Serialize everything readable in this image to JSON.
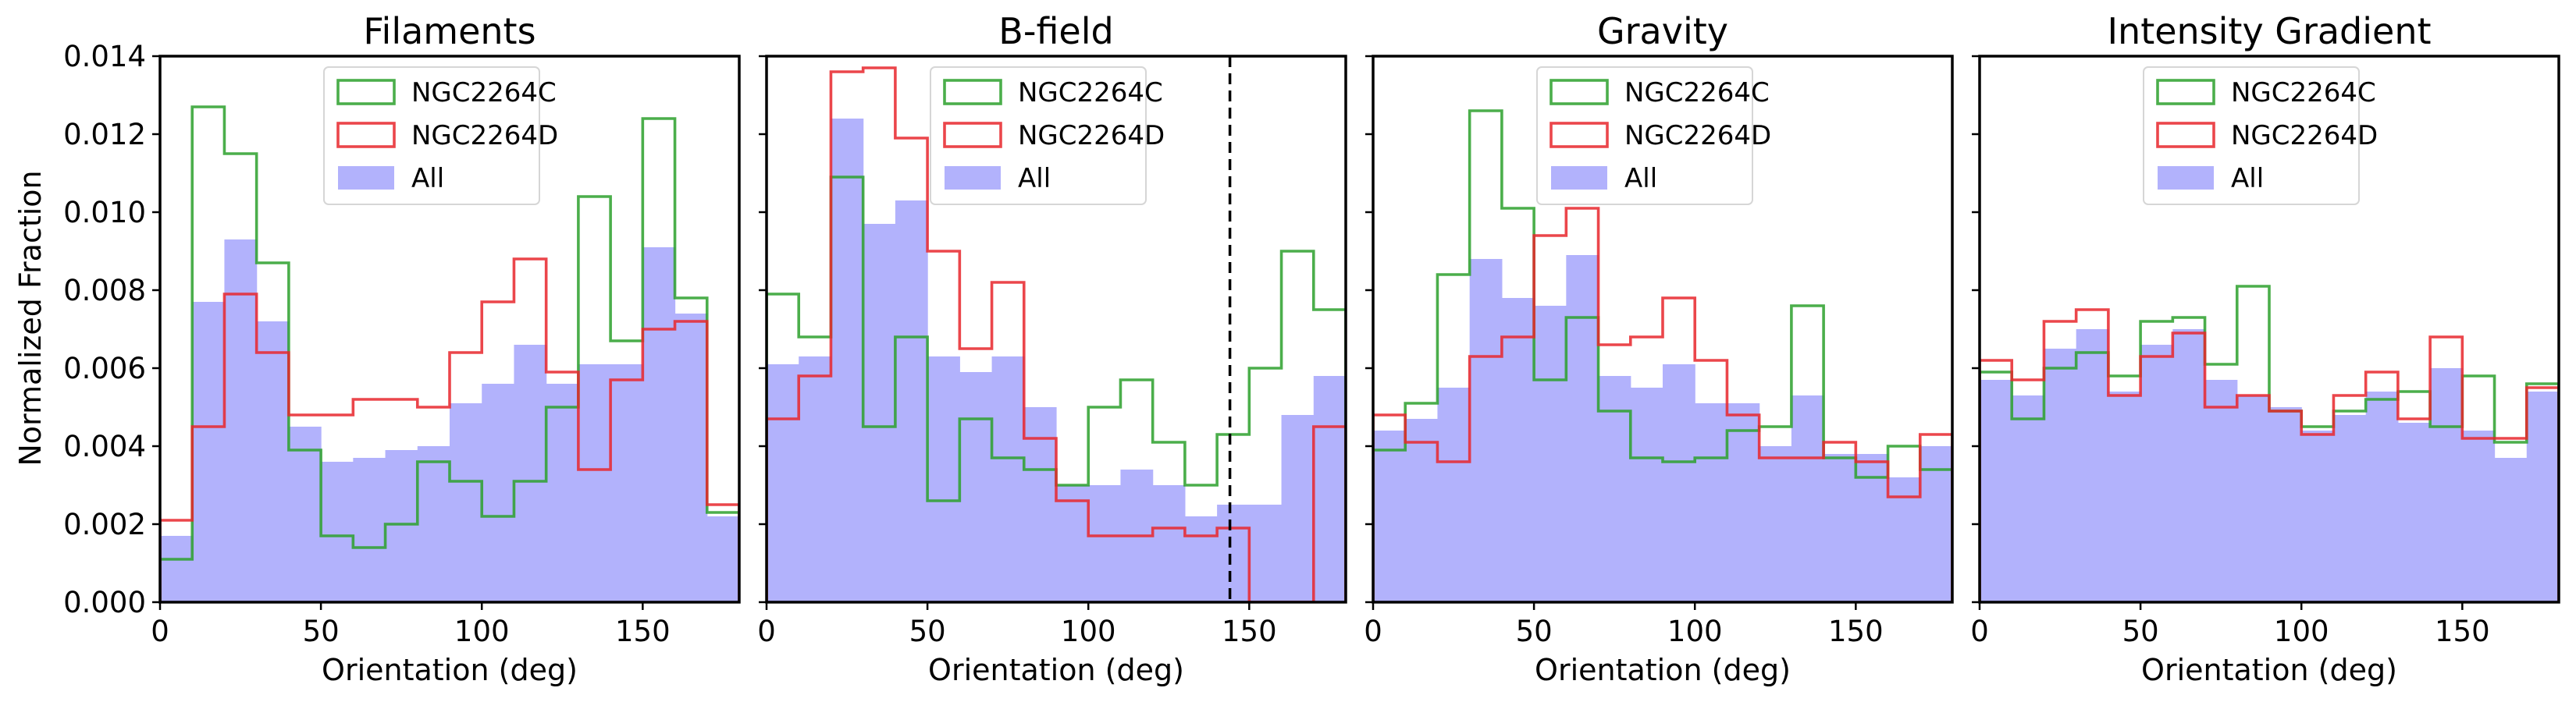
{
  "chart_data": {
    "type": "histogram-panels",
    "ylabel": "Normalized Fraction",
    "ylim": [
      0,
      0.014
    ],
    "yticks": [
      "0.000",
      "0.002",
      "0.004",
      "0.006",
      "0.008",
      "0.010",
      "0.012",
      "0.014"
    ],
    "yticks_values": [
      0,
      0.002,
      0.004,
      0.006,
      0.008,
      0.01,
      0.012,
      0.014
    ],
    "bin_edges": [
      0,
      10,
      20,
      30,
      40,
      50,
      60,
      70,
      80,
      90,
      100,
      110,
      120,
      130,
      140,
      150,
      160,
      170,
      180
    ],
    "colors": {
      "NGC2264C": "#2ca02c",
      "NGC2264D": "#e8262b",
      "All": "#b2b2fc"
    },
    "legend_entries": [
      "NGC2264C",
      "NGC2264D",
      "All"
    ],
    "panels": [
      {
        "title": "Filaments",
        "xlabel": "Orientation (deg)",
        "xlim": [
          0,
          180
        ],
        "xticks": [
          "0",
          "50",
          "100",
          "150"
        ],
        "xticks_values": [
          0,
          50,
          100,
          150
        ],
        "series": [
          {
            "name": "All",
            "style": "filled",
            "values": [
              0.0017,
              0.0077,
              0.0093,
              0.0072,
              0.0045,
              0.0036,
              0.0037,
              0.0039,
              0.004,
              0.0051,
              0.0056,
              0.0066,
              0.0056,
              0.0061,
              0.0061,
              0.0091,
              0.0074,
              0.0022
            ]
          },
          {
            "name": "NGC2264C",
            "style": "step",
            "values": [
              0.0011,
              0.0127,
              0.0115,
              0.0087,
              0.0039,
              0.0017,
              0.0014,
              0.002,
              0.0036,
              0.0031,
              0.0022,
              0.0031,
              0.005,
              0.0104,
              0.0067,
              0.0124,
              0.0078,
              0.0023
            ]
          },
          {
            "name": "NGC2264D",
            "style": "step",
            "values": [
              0.0021,
              0.0045,
              0.0079,
              0.0064,
              0.0048,
              0.0048,
              0.0052,
              0.0052,
              0.005,
              0.0064,
              0.0077,
              0.0088,
              0.0059,
              0.0034,
              0.0057,
              0.007,
              0.0072,
              0.0025
            ]
          }
        ]
      },
      {
        "title": "B-field",
        "xlabel": "Orientation (deg)",
        "xlim": [
          0,
          180
        ],
        "xticks": [
          "0",
          "50",
          "100",
          "150"
        ],
        "xticks_values": [
          0,
          50,
          100,
          150
        ],
        "vline": 144,
        "series": [
          {
            "name": "All",
            "style": "filled",
            "values": [
              0.0061,
              0.0063,
              0.0124,
              0.0097,
              0.0103,
              0.0063,
              0.0059,
              0.0063,
              0.005,
              0.003,
              0.003,
              0.0034,
              0.003,
              0.0022,
              0.0025,
              0.0025,
              0.0048,
              0.0058
            ]
          },
          {
            "name": "NGC2264C",
            "style": "step",
            "values": [
              0.0079,
              0.0068,
              0.0109,
              0.0045,
              0.0068,
              0.0026,
              0.0047,
              0.0037,
              0.0034,
              0.003,
              0.005,
              0.0057,
              0.0041,
              0.003,
              0.0043,
              0.006,
              0.009,
              0.0075
            ]
          },
          {
            "name": "NGC2264D",
            "style": "step",
            "values": [
              0.0047,
              0.0058,
              0.0136,
              0.0137,
              0.0119,
              0.009,
              0.0065,
              0.0082,
              0.0042,
              0.0026,
              0.0017,
              0.0017,
              0.0019,
              0.0017,
              0.0019,
              0.0,
              0.0,
              0.0045
            ]
          }
        ]
      },
      {
        "title": "Gravity",
        "xlabel": "Orientation (deg)",
        "xlim": [
          0,
          180
        ],
        "xticks": [
          "0",
          "50",
          "100",
          "150"
        ],
        "xticks_values": [
          0,
          50,
          100,
          150
        ],
        "series": [
          {
            "name": "All",
            "style": "filled",
            "values": [
              0.0044,
              0.0047,
              0.0055,
              0.0088,
              0.0078,
              0.0076,
              0.0089,
              0.0058,
              0.0055,
              0.0061,
              0.0051,
              0.0051,
              0.004,
              0.0053,
              0.0038,
              0.0038,
              0.0032,
              0.004
            ]
          },
          {
            "name": "NGC2264C",
            "style": "step",
            "values": [
              0.0039,
              0.0051,
              0.0084,
              0.0126,
              0.0101,
              0.0057,
              0.0073,
              0.0049,
              0.0037,
              0.0036,
              0.0037,
              0.0044,
              0.0045,
              0.0076,
              0.0037,
              0.0032,
              0.004,
              0.0034
            ]
          },
          {
            "name": "NGC2264D",
            "style": "step",
            "values": [
              0.0048,
              0.0041,
              0.0036,
              0.0063,
              0.0068,
              0.0094,
              0.0101,
              0.0066,
              0.0068,
              0.0078,
              0.0062,
              0.0048,
              0.0037,
              0.0037,
              0.0041,
              0.0036,
              0.0027,
              0.0043
            ]
          }
        ]
      },
      {
        "title": "Intensity Gradient",
        "xlabel": "Orientation (deg)",
        "xlim": [
          0,
          180
        ],
        "xticks": [
          "0",
          "50",
          "100",
          "150"
        ],
        "xticks_values": [
          0,
          50,
          100,
          150
        ],
        "series": [
          {
            "name": "All",
            "style": "filled",
            "values": [
              0.0057,
              0.0053,
              0.0065,
              0.007,
              0.0054,
              0.0066,
              0.007,
              0.0057,
              0.0053,
              0.005,
              0.0044,
              0.0048,
              0.0054,
              0.0046,
              0.006,
              0.0044,
              0.0037,
              0.0054
            ]
          },
          {
            "name": "NGC2264C",
            "style": "step",
            "values": [
              0.0059,
              0.0047,
              0.006,
              0.0064,
              0.0058,
              0.0072,
              0.0073,
              0.0061,
              0.0081,
              0.0049,
              0.0045,
              0.0049,
              0.0052,
              0.0054,
              0.0045,
              0.0058,
              0.0041,
              0.0056
            ]
          },
          {
            "name": "NGC2264D",
            "style": "step",
            "values": [
              0.0062,
              0.0057,
              0.0072,
              0.0075,
              0.0053,
              0.0063,
              0.0069,
              0.005,
              0.0053,
              0.0049,
              0.0043,
              0.0053,
              0.0059,
              0.0047,
              0.0068,
              0.0042,
              0.0042,
              0.0055
            ]
          }
        ]
      }
    ]
  }
}
